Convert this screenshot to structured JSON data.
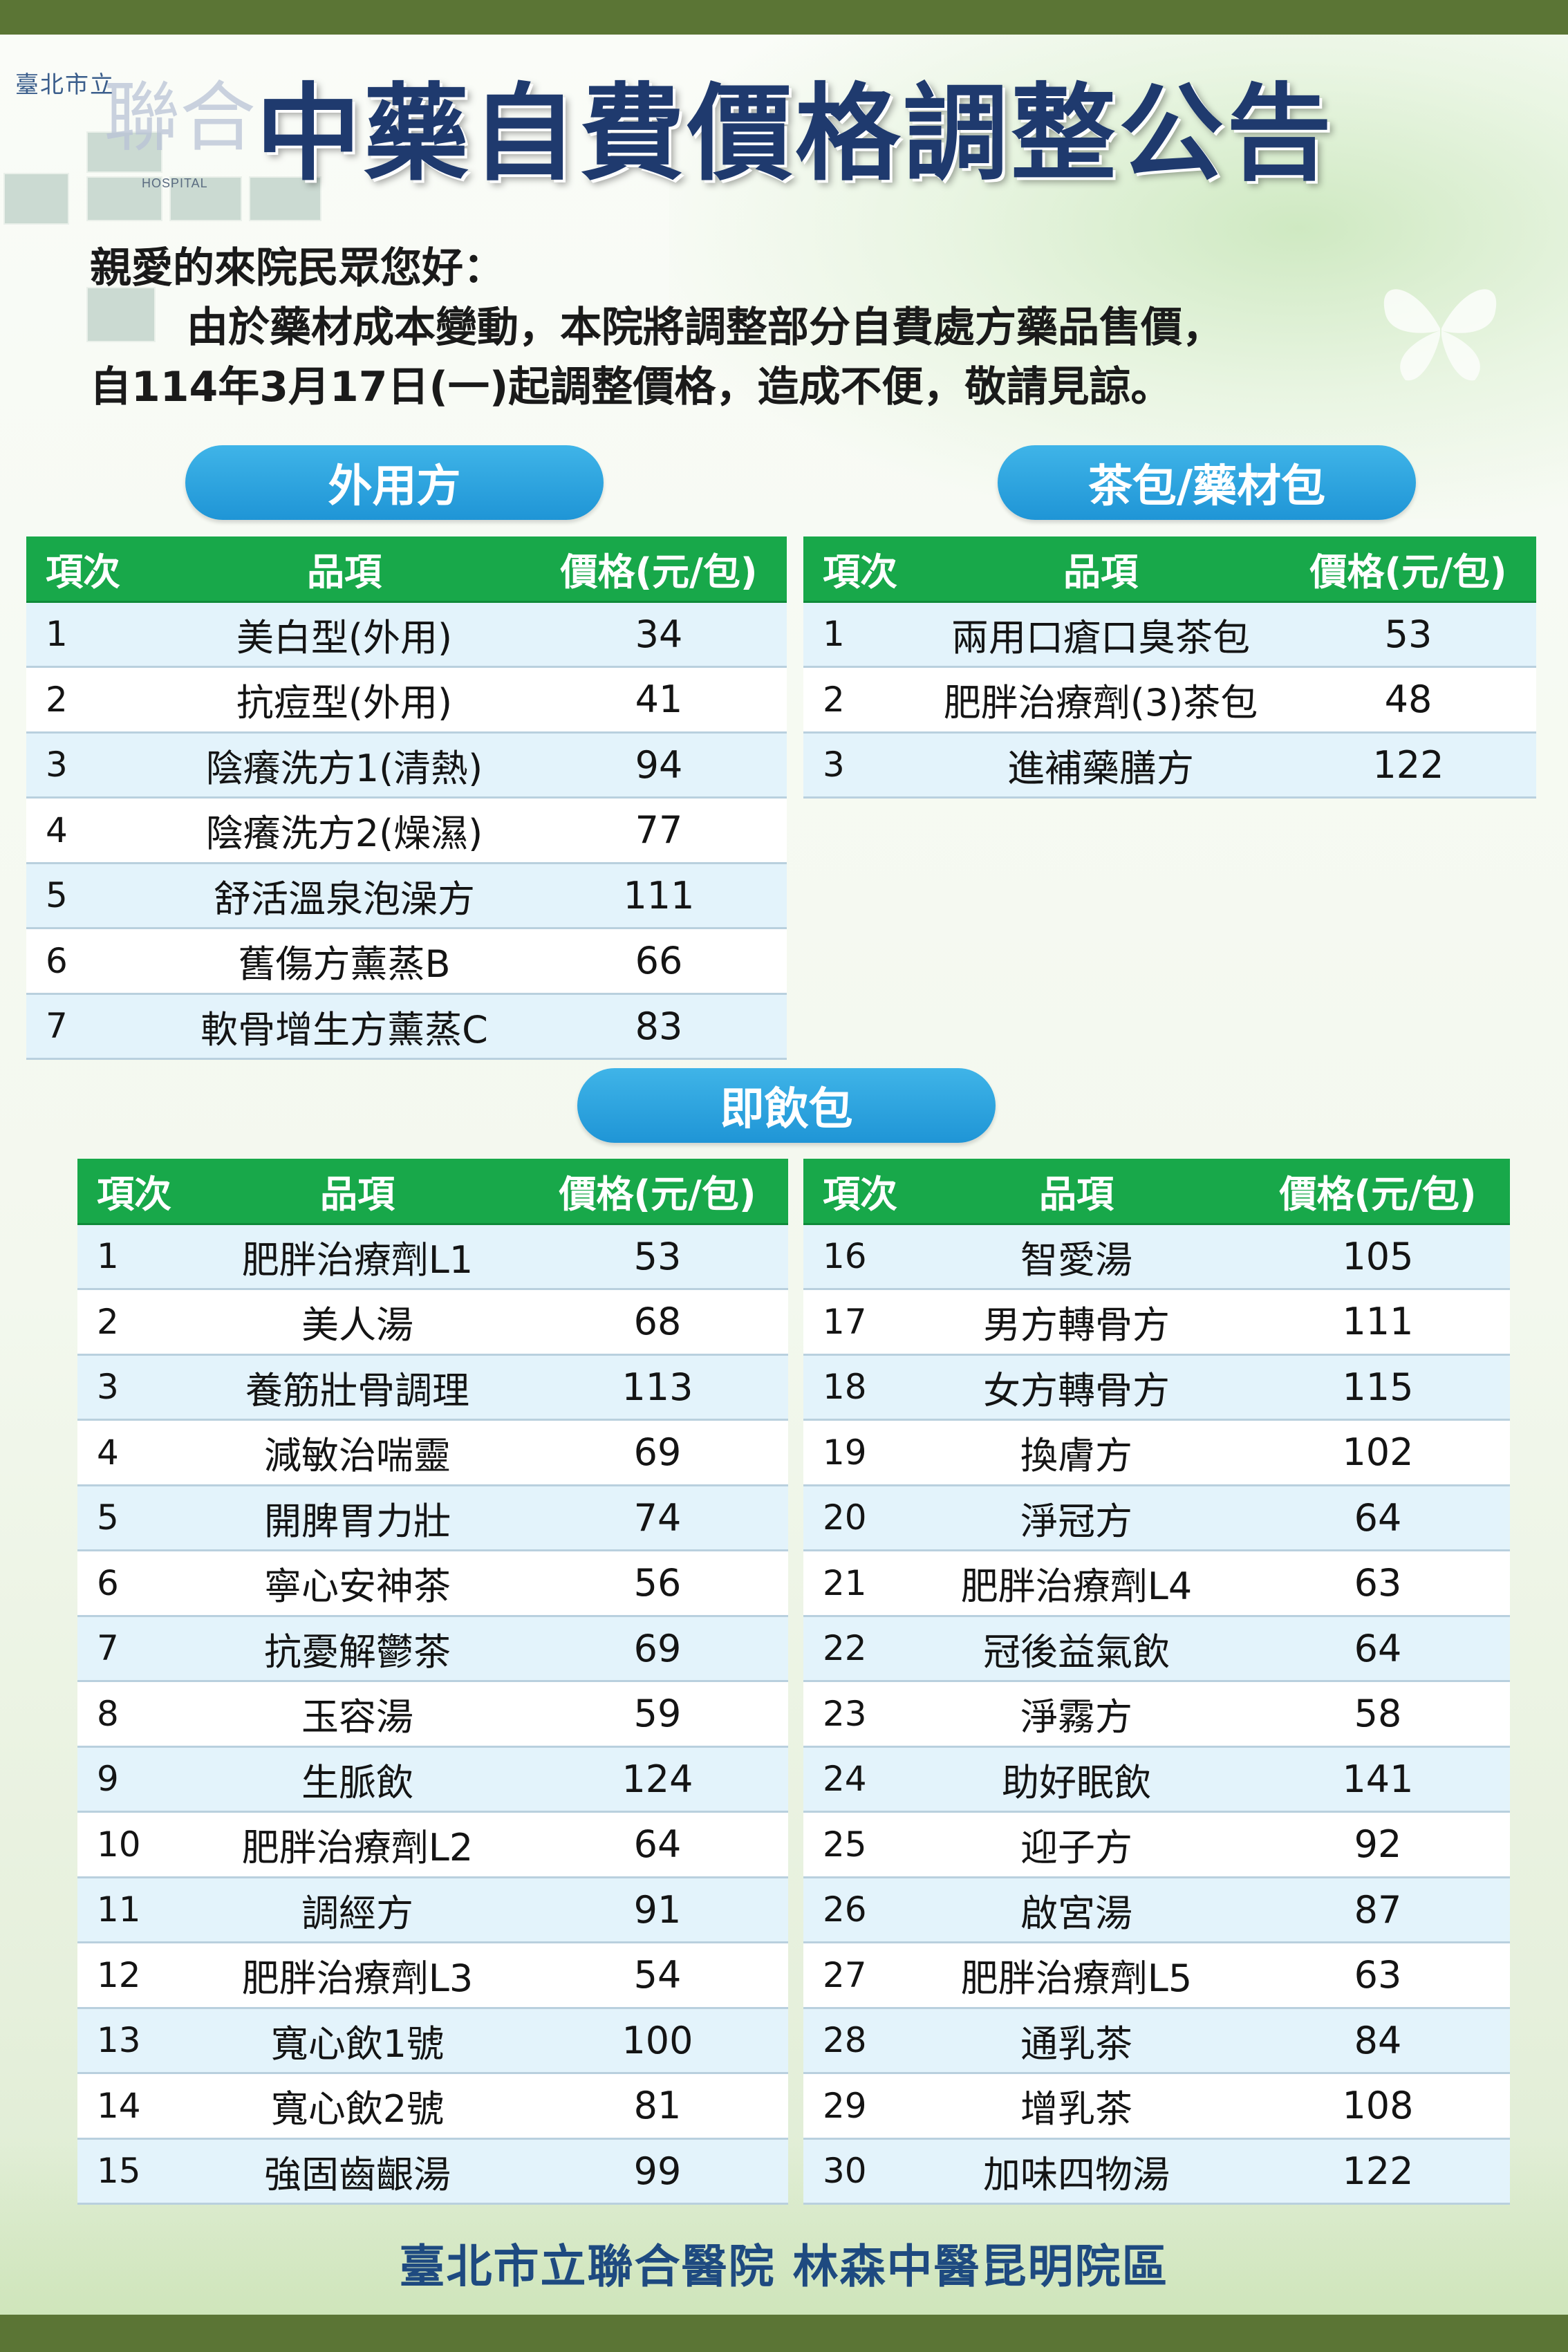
{
  "title": "中藥自費價格調整公告",
  "logo": {
    "name_cn": "臺北市立",
    "big_char": "聯合",
    "hospital_en": "HOSPITAL"
  },
  "intro": {
    "line1": "親愛的來院民眾您好：",
    "line2": "由於藥材成本變動，本院將調整部分自費處方藥品售價，",
    "line3": "自114年3月17日(一)起調整價格，造成不便，敬請見諒。"
  },
  "headers": {
    "no": "項次",
    "item": "品項",
    "price": "價格(元/包)"
  },
  "external": {
    "label": "外用方",
    "rows": [
      {
        "no": "1",
        "item": "美白型(外用)",
        "price": "34"
      },
      {
        "no": "2",
        "item": "抗痘型(外用)",
        "price": "41"
      },
      {
        "no": "3",
        "item": "陰癢洗方1(清熱)",
        "price": "94"
      },
      {
        "no": "4",
        "item": "陰癢洗方2(燥濕)",
        "price": "77"
      },
      {
        "no": "5",
        "item": "舒活溫泉泡澡方",
        "price": "111"
      },
      {
        "no": "6",
        "item": "舊傷方薰蒸B",
        "price": "66"
      },
      {
        "no": "7",
        "item": "軟骨增生方薰蒸C",
        "price": "83"
      }
    ]
  },
  "tea": {
    "label": "茶包/藥材包",
    "rows": [
      {
        "no": "1",
        "item": "兩用口瘡口臭茶包",
        "price": "53"
      },
      {
        "no": "2",
        "item": "肥胖治療劑(3)茶包",
        "price": "48"
      },
      {
        "no": "3",
        "item": "進補藥膳方",
        "price": "122"
      }
    ]
  },
  "drink": {
    "label": "即飲包",
    "left": [
      {
        "no": "1",
        "item": "肥胖治療劑L1",
        "price": "53"
      },
      {
        "no": "2",
        "item": "美人湯",
        "price": "68"
      },
      {
        "no": "3",
        "item": "養筋壯骨調理",
        "price": "113"
      },
      {
        "no": "4",
        "item": "減敏治喘靈",
        "price": "69"
      },
      {
        "no": "5",
        "item": "開脾胃力壯",
        "price": "74"
      },
      {
        "no": "6",
        "item": "寧心安神茶",
        "price": "56"
      },
      {
        "no": "7",
        "item": "抗憂解鬱茶",
        "price": "69"
      },
      {
        "no": "8",
        "item": "玉容湯",
        "price": "59"
      },
      {
        "no": "9",
        "item": "生脈飲",
        "price": "124"
      },
      {
        "no": "10",
        "item": "肥胖治療劑L2",
        "price": "64"
      },
      {
        "no": "11",
        "item": "調經方",
        "price": "91"
      },
      {
        "no": "12",
        "item": "肥胖治療劑L3",
        "price": "54"
      },
      {
        "no": "13",
        "item": "寬心飲1號",
        "price": "100"
      },
      {
        "no": "14",
        "item": "寬心飲2號",
        "price": "81"
      },
      {
        "no": "15",
        "item": "強固齒齦湯",
        "price": "99"
      }
    ],
    "right": [
      {
        "no": "16",
        "item": "智愛湯",
        "price": "105"
      },
      {
        "no": "17",
        "item": "男方轉骨方",
        "price": "111"
      },
      {
        "no": "18",
        "item": "女方轉骨方",
        "price": "115"
      },
      {
        "no": "19",
        "item": "換膚方",
        "price": "102"
      },
      {
        "no": "20",
        "item": "淨冠方",
        "price": "64"
      },
      {
        "no": "21",
        "item": "肥胖治療劑L4",
        "price": "63"
      },
      {
        "no": "22",
        "item": "冠後益氣飲",
        "price": "64"
      },
      {
        "no": "23",
        "item": "淨霧方",
        "price": "58"
      },
      {
        "no": "24",
        "item": "助好眠飲",
        "price": "141"
      },
      {
        "no": "25",
        "item": "迎子方",
        "price": "92"
      },
      {
        "no": "26",
        "item": "啟宮湯",
        "price": "87"
      },
      {
        "no": "27",
        "item": "肥胖治療劑L5",
        "price": "63"
      },
      {
        "no": "28",
        "item": "通乳茶",
        "price": "84"
      },
      {
        "no": "29",
        "item": "增乳茶",
        "price": "108"
      },
      {
        "no": "30",
        "item": "加味四物湯",
        "price": "122"
      }
    ]
  },
  "footer": "臺北市立聯合醫院 林森中醫昆明院區"
}
